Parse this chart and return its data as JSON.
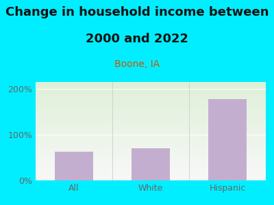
{
  "title_line1": "Change in household income between",
  "title_line2": "2000 and 2022",
  "subtitle": "Boone, IA",
  "categories": [
    "All",
    "White",
    "Hispanic"
  ],
  "values": [
    63,
    70,
    178
  ],
  "bar_color": "#c4aed0",
  "background_outer": "#00eeff",
  "plot_bg_top": "#dff0d8",
  "plot_bg_bottom": "#f8f8f8",
  "title_fontsize": 13,
  "subtitle_fontsize": 10,
  "subtitle_color": "#cc5500",
  "tick_color": "#666666",
  "yticks": [
    0,
    100,
    200
  ],
  "ytick_labels": [
    "0%",
    "100%",
    "200%"
  ],
  "ylim": [
    0,
    215
  ],
  "xlim": [
    -0.5,
    2.5
  ]
}
